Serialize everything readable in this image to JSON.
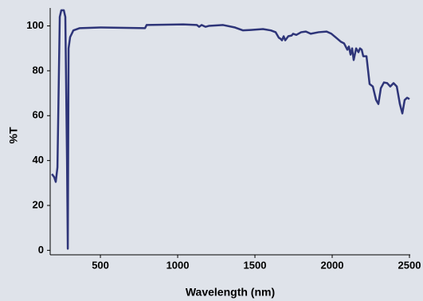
{
  "chart_data": {
    "type": "line",
    "x_label": "Wavelength (nm)",
    "y_label": "%T",
    "xlim": [
      175,
      2500
    ],
    "ylim": [
      -2,
      108
    ],
    "xticks": [
      500,
      1000,
      1500,
      2000,
      2500
    ],
    "yticks": [
      0,
      20,
      40,
      60,
      80,
      100
    ],
    "grid": false,
    "series": [
      {
        "color": "#2e3579",
        "x": [
          186,
          201,
          211,
          222,
          237,
          247,
          263,
          273,
          284,
          289,
          294,
          304,
          325,
          366,
          500,
          789,
          799,
          1036,
          1124,
          1139,
          1155,
          1180,
          1201,
          1294,
          1371,
          1423,
          1474,
          1552,
          1603,
          1634,
          1655,
          1665,
          1675,
          1686,
          1696,
          1716,
          1737,
          1747,
          1768,
          1799,
          1830,
          1861,
          1912,
          1964,
          1995,
          2026,
          2057,
          2077,
          2098,
          2108,
          2119,
          2129,
          2139,
          2155,
          2170,
          2180,
          2191,
          2201,
          2222,
          2242,
          2263,
          2284,
          2299,
          2315,
          2335,
          2356,
          2376,
          2397,
          2418,
          2438,
          2454,
          2469,
          2485,
          2500
        ],
        "values": [
          34,
          32.6,
          30.5,
          37,
          104,
          107,
          107,
          104,
          40,
          0.7,
          90,
          95,
          98,
          99,
          99.3,
          99,
          100.4,
          100.7,
          100.4,
          99.6,
          100.4,
          99.6,
          100,
          100.4,
          99.3,
          98,
          98.2,
          98.6,
          98,
          97.2,
          94.7,
          94.3,
          93.6,
          95.4,
          93.6,
          95.4,
          95.7,
          96.5,
          96,
          97.2,
          97.5,
          96.5,
          97.2,
          97.5,
          96.5,
          94.7,
          92.9,
          92.2,
          89.4,
          90.8,
          87.2,
          90,
          84.8,
          90,
          88.3,
          90,
          89.4,
          86.5,
          86.5,
          74.1,
          73,
          67,
          65.2,
          72.3,
          74.8,
          74.5,
          73,
          74.5,
          73,
          65.2,
          61,
          67,
          68,
          67.4
        ]
      }
    ]
  }
}
